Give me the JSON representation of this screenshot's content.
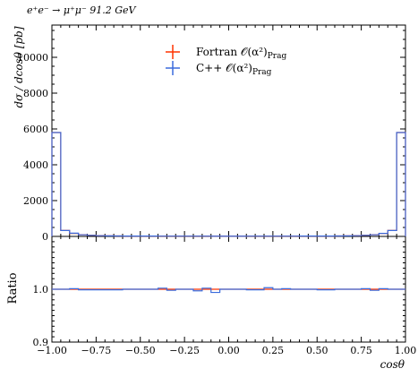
{
  "chart_data": {
    "type": "line",
    "title": "e⁺e⁻ → μ⁺μ⁻ 91.2 GeV",
    "xlabel": "cosθ",
    "ylabel": "dσ / dcosθ [pb]",
    "ratio_label": "Ratio",
    "xlim": [
      -1.0,
      1.0
    ],
    "ylim": [
      0,
      11800
    ],
    "ratio_ylim": [
      0.9,
      1.1
    ],
    "legend_position": "top-center",
    "x_ticks": [
      "−1.00",
      "−0.75",
      "−0.50",
      "−0.25",
      "0.00",
      "0.25",
      "0.50",
      "0.75",
      "1.00"
    ],
    "x_tick_values": [
      -1.0,
      -0.75,
      -0.5,
      -0.25,
      0.0,
      0.25,
      0.5,
      0.75,
      1.0
    ],
    "y_ticks": [
      "0",
      "2000",
      "4000",
      "6000",
      "8000",
      "10000"
    ],
    "y_tick_values": [
      0,
      2000,
      4000,
      6000,
      8000,
      10000
    ],
    "ratio_ticks": [
      "0.9",
      "1.0"
    ],
    "ratio_tick_values": [
      0.9,
      1.0
    ],
    "bin_edges": [
      -1.0,
      -0.95,
      -0.9,
      -0.85,
      -0.8,
      -0.75,
      -0.7,
      -0.65,
      -0.6,
      -0.55,
      -0.5,
      -0.45,
      -0.4,
      -0.35,
      -0.3,
      -0.25,
      -0.2,
      -0.15,
      -0.1,
      -0.05,
      0.0,
      0.05,
      0.1,
      0.15,
      0.2,
      0.25,
      0.3,
      0.35,
      0.4,
      0.45,
      0.5,
      0.55,
      0.6,
      0.65,
      0.7,
      0.75,
      0.8,
      0.85,
      0.9,
      0.95,
      1.0
    ],
    "series": [
      {
        "name": "Fortran",
        "legend": "Fortran 𝒪(α²)",
        "legend_sub": "Prag",
        "color": "#ff3300",
        "values": [
          5800,
          330,
          170,
          90,
          60,
          40,
          30,
          25,
          20,
          20,
          18,
          18,
          16,
          16,
          15,
          15,
          15,
          15,
          14,
          14,
          14,
          14,
          15,
          15,
          15,
          15,
          16,
          16,
          18,
          18,
          20,
          20,
          25,
          30,
          40,
          60,
          90,
          170,
          330,
          5800
        ],
        "ratio": [
          1.0,
          1.0,
          1.0,
          1.0,
          1.0,
          1.0,
          1.0,
          1.0,
          1.0,
          1.0,
          1.0,
          1.0,
          1.0,
          1.0,
          1.0,
          1.0,
          1.0,
          1.0,
          1.0,
          1.0,
          1.0,
          1.0,
          1.0,
          1.0,
          1.0,
          1.0,
          1.0,
          1.0,
          1.0,
          1.0,
          1.0,
          1.0,
          1.0,
          1.0,
          1.0,
          1.0,
          1.0,
          1.0,
          1.0,
          1.0
        ]
      },
      {
        "name": "C++",
        "legend": "C++ 𝒪(α²)",
        "legend_sub": "Prag",
        "color": "#3a6bdc",
        "values": [
          5800,
          330,
          180,
          90,
          60,
          40,
          30,
          25,
          20,
          20,
          18,
          18,
          16,
          16,
          15,
          15,
          15,
          15,
          14,
          14,
          14,
          14,
          15,
          15,
          15,
          15,
          16,
          16,
          18,
          18,
          20,
          20,
          25,
          30,
          40,
          60,
          90,
          170,
          330,
          5800
        ],
        "ratio": [
          1.0,
          1.0,
          1.001,
          0.999,
          0.999,
          0.999,
          0.999,
          0.999,
          1.0,
          1.0,
          1.0,
          1.0,
          1.002,
          0.998,
          1.0,
          1.0,
          0.997,
          1.002,
          0.994,
          1.0,
          1.0,
          1.0,
          0.999,
          0.999,
          1.003,
          1.0,
          1.001,
          1.0,
          1.0,
          1.0,
          0.999,
          0.999,
          1.0,
          1.0,
          1.0,
          1.001,
          0.998,
          1.001,
          1.0,
          1.0
        ]
      }
    ]
  }
}
